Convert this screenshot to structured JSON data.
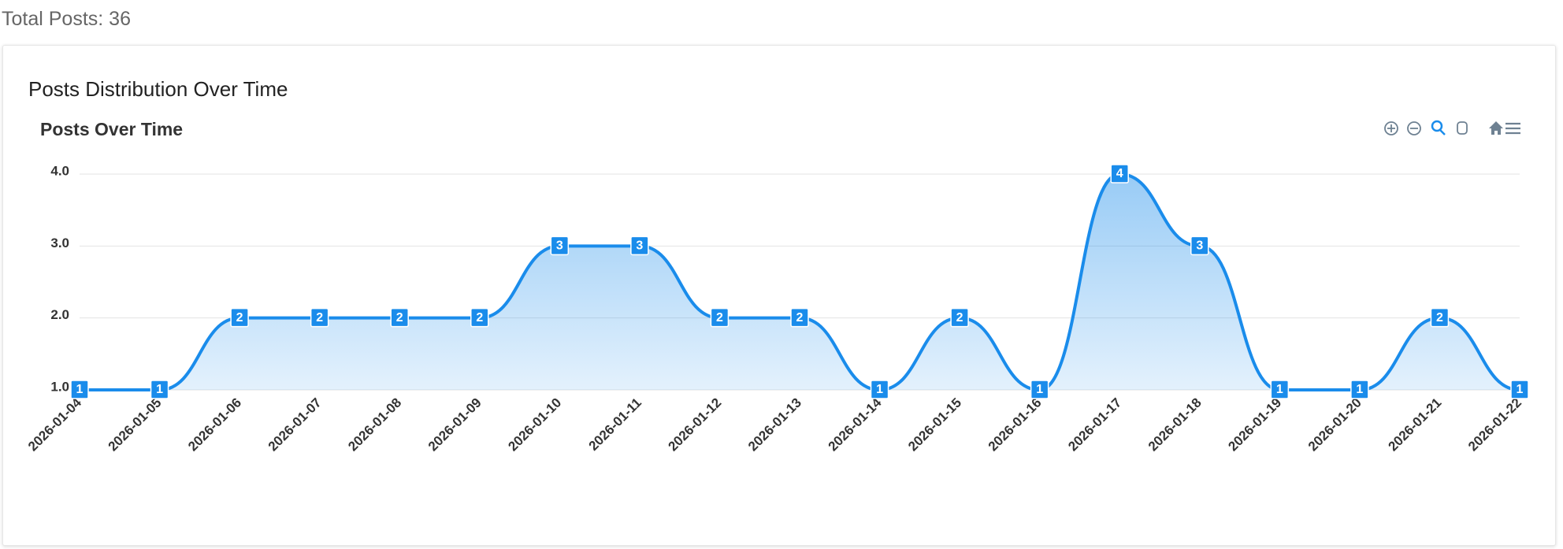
{
  "header": {
    "total": "Total Posts: 36"
  },
  "card": {
    "title": "Posts Distribution Over Time"
  },
  "chart_data": {
    "type": "area",
    "title": "Posts Over Time",
    "categories": [
      "2026-01-04",
      "2026-01-05",
      "2026-01-06",
      "2026-01-07",
      "2026-01-08",
      "2026-01-09",
      "2026-01-10",
      "2026-01-11",
      "2026-01-12",
      "2026-01-13",
      "2026-01-14",
      "2026-01-15",
      "2026-01-16",
      "2026-01-17",
      "2026-01-18",
      "2026-01-19",
      "2026-01-20",
      "2026-01-21",
      "2026-01-22"
    ],
    "values": [
      1,
      1,
      2,
      2,
      2,
      2,
      3,
      3,
      2,
      2,
      1,
      2,
      1,
      4,
      3,
      1,
      1,
      2,
      1
    ],
    "color": "#1a8ceb",
    "ylim": [
      1,
      4
    ],
    "yticks": [
      {
        "value": 1,
        "label": "1.0"
      },
      {
        "value": 2,
        "label": "2.0"
      },
      {
        "value": 3,
        "label": "3.0"
      },
      {
        "value": 4,
        "label": "4.0"
      }
    ],
    "grid": true
  }
}
